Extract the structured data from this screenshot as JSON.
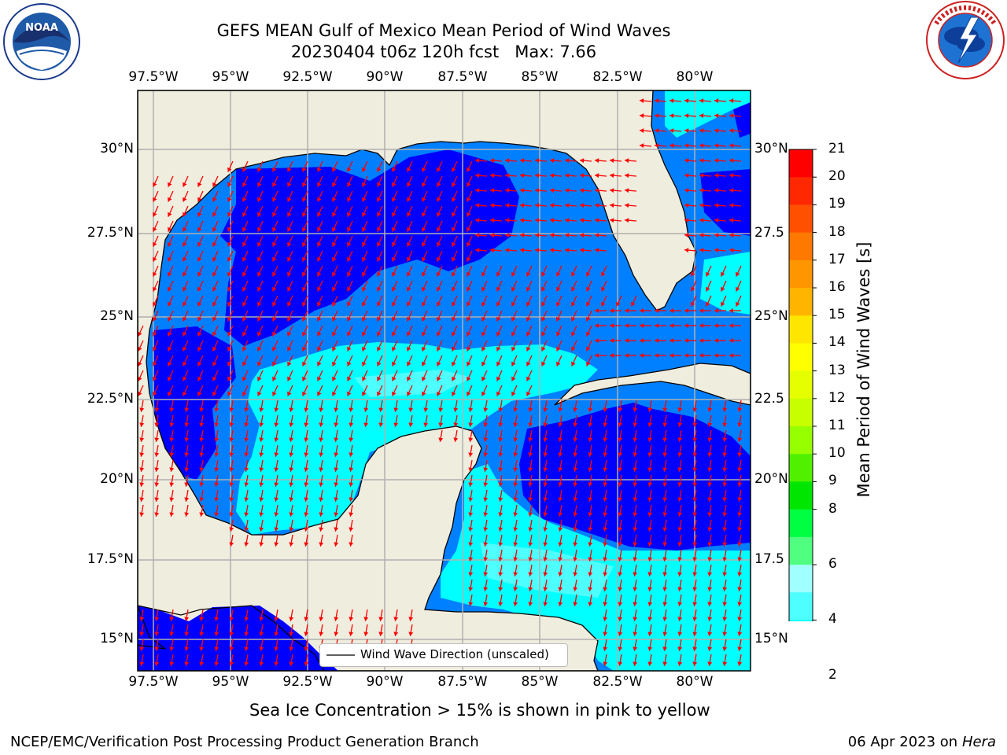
{
  "title": {
    "line1": "GEFS MEAN Gulf of Mexico Mean Period of Wind Waves",
    "line2": "20230404 t06z 120h fcst   Max: 7.66"
  },
  "logos": {
    "left_icon": "noaa-logo-icon",
    "left_text": "NOAA",
    "right_icon": "national-weather-service-logo-icon",
    "right_text": "NATIONAL WEATHER SERVICE"
  },
  "map": {
    "lon_labels": [
      "97.5°W",
      "95°W",
      "92.5°W",
      "90°W",
      "87.5°W",
      "85°W",
      "82.5°W",
      "80°W"
    ],
    "lat_labels_left": [
      "30°N",
      "27.5°N",
      "25°N",
      "22.5°N",
      "20°N",
      "17.5°N",
      "15°N"
    ],
    "lat_labels_right": [
      "30°N",
      "27.5",
      "25°N",
      "22.5",
      "20°N",
      "17.5",
      "15°N"
    ],
    "legend_label": "Wind Wave Direction (unscaled)",
    "colors": {
      "land": "#efedde",
      "sea_2_4": "#0080ff",
      "sea_under_2": "#0000ff",
      "sea_4_6": "#00ffff",
      "sea_6_8": "#4dffff",
      "arrow": "#ff0000"
    }
  },
  "colorbar": {
    "label": "Mean Period of Wind Waves [s]",
    "ticks": [
      "21",
      "20",
      "19",
      "18",
      "17",
      "16",
      "15",
      "14",
      "13",
      "12",
      "11",
      "10",
      "9",
      "8",
      "6",
      "4",
      "2"
    ],
    "colors_top_to_bottom": [
      "#ff0000",
      "#ff2800",
      "#ff5000",
      "#ff7800",
      "#ff9600",
      "#ffb400",
      "#ffe600",
      "#ffff00",
      "#e6ff00",
      "#c8ff00",
      "#96ff00",
      "#50f000",
      "#00e600",
      "#00ff40",
      "#50ff80",
      "#a0ffff",
      "#4dffff",
      "#00ffff",
      "#0080ff"
    ],
    "under_color": "#0000ff"
  },
  "note": "Sea Ice Concentration > 15% is shown in pink to yellow",
  "footer": {
    "left": "NCEP/EMC/Verification Post Processing Product Generation Branch",
    "right_date": "06 Apr 2023 on",
    "right_host": "Hera"
  }
}
